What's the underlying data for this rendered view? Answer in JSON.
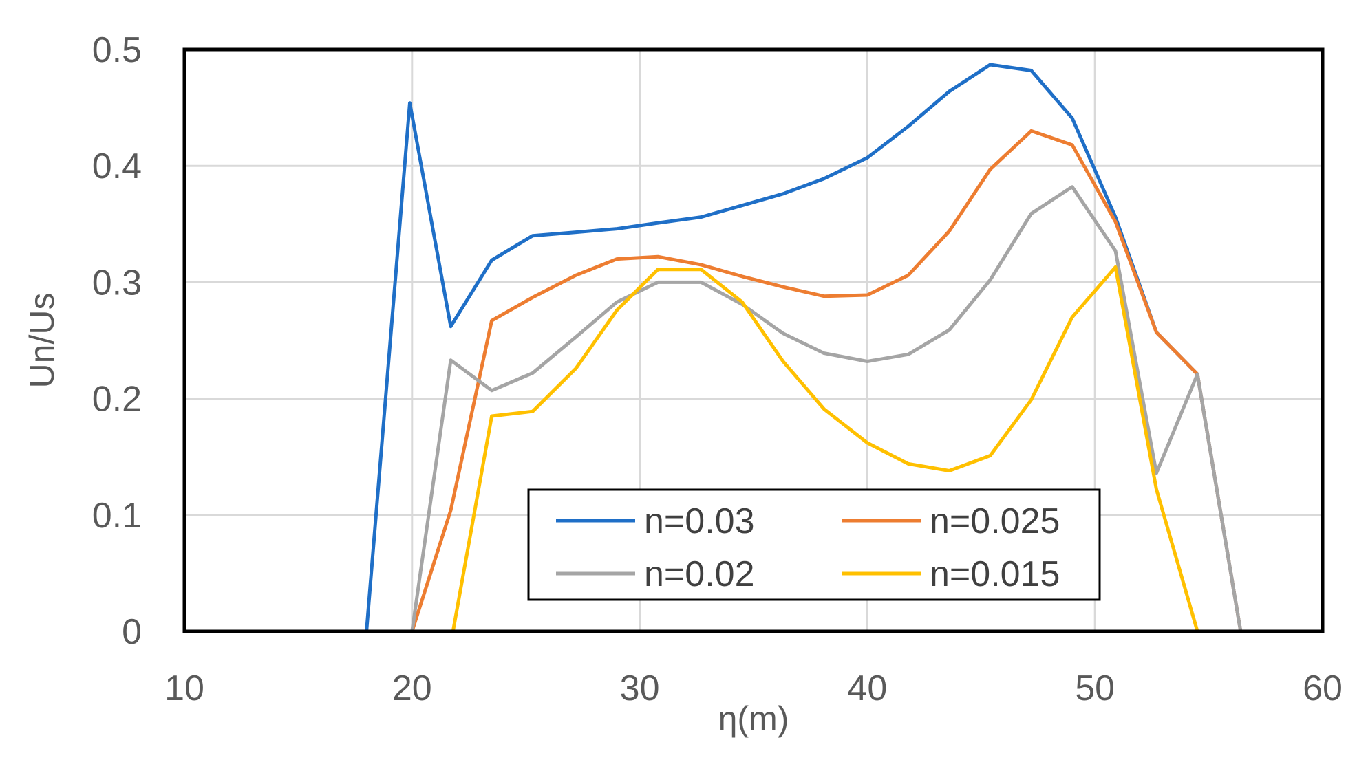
{
  "chart_data": {
    "type": "line",
    "title": "",
    "xlabel": "η(m)",
    "ylabel": "Un/Us",
    "xlim": [
      10,
      60
    ],
    "ylim": [
      0,
      0.5
    ],
    "x_ticks": [
      10,
      20,
      30,
      40,
      50,
      60
    ],
    "y_ticks": [
      0,
      0.1,
      0.2,
      0.3,
      0.4,
      0.5
    ],
    "x_tick_labels": [
      "10",
      "20",
      "30",
      "40",
      "50",
      "60"
    ],
    "y_tick_labels": [
      "0",
      "0.1",
      "0.2",
      "0.3",
      "0.4",
      "0.5"
    ],
    "grid": true,
    "legend_position": "bottom-center",
    "series": [
      {
        "name": "n=0.03",
        "color": "#1f6fc7",
        "points": [
          [
            10,
            0
          ],
          [
            18,
            0
          ],
          [
            19.9,
            0.454
          ],
          [
            21.7,
            0.262
          ],
          [
            23.5,
            0.319
          ],
          [
            25.3,
            0.34
          ],
          [
            27.2,
            0.343
          ],
          [
            29,
            0.346
          ],
          [
            30.8,
            0.351
          ],
          [
            32.7,
            0.356
          ],
          [
            34.5,
            0.366
          ],
          [
            36.3,
            0.376
          ],
          [
            38.1,
            0.389
          ],
          [
            40,
            0.407
          ],
          [
            41.8,
            0.434
          ],
          [
            43.6,
            0.464
          ],
          [
            45.4,
            0.487
          ],
          [
            47.2,
            0.482
          ],
          [
            49,
            0.441
          ],
          [
            50.9,
            0.356
          ],
          [
            52.7,
            0.257
          ],
          [
            54.5,
            0.221
          ],
          [
            56.4,
            0
          ],
          [
            60,
            0
          ]
        ]
      },
      {
        "name": "n=0.025",
        "color": "#ed7d31",
        "points": [
          [
            10,
            0
          ],
          [
            20,
            0
          ],
          [
            21.7,
            0.104
          ],
          [
            23.5,
            0.267
          ],
          [
            25.3,
            0.287
          ],
          [
            27.2,
            0.306
          ],
          [
            29,
            0.32
          ],
          [
            30.8,
            0.322
          ],
          [
            32.7,
            0.315
          ],
          [
            34.5,
            0.305
          ],
          [
            36.3,
            0.296
          ],
          [
            38.1,
            0.288
          ],
          [
            40,
            0.289
          ],
          [
            41.8,
            0.306
          ],
          [
            43.6,
            0.344
          ],
          [
            45.4,
            0.397
          ],
          [
            47.2,
            0.43
          ],
          [
            49,
            0.418
          ],
          [
            50.9,
            0.352
          ],
          [
            52.7,
            0.257
          ],
          [
            54.5,
            0.221
          ],
          [
            56.4,
            0
          ],
          [
            60,
            0
          ]
        ]
      },
      {
        "name": "n=0.02",
        "color": "#a5a5a5",
        "points": [
          [
            10,
            0
          ],
          [
            20,
            0
          ],
          [
            21.7,
            0.233
          ],
          [
            23.5,
            0.207
          ],
          [
            25.3,
            0.222
          ],
          [
            27.2,
            0.253
          ],
          [
            29,
            0.283
          ],
          [
            30.8,
            0.3
          ],
          [
            32.7,
            0.3
          ],
          [
            34.5,
            0.281
          ],
          [
            36.3,
            0.256
          ],
          [
            38.1,
            0.239
          ],
          [
            40,
            0.232
          ],
          [
            41.8,
            0.238
          ],
          [
            43.6,
            0.259
          ],
          [
            45.4,
            0.302
          ],
          [
            47.2,
            0.359
          ],
          [
            49,
            0.382
          ],
          [
            50.9,
            0.327
          ],
          [
            52.7,
            0.136
          ],
          [
            54.5,
            0.221
          ],
          [
            56.4,
            0
          ],
          [
            60,
            0
          ]
        ]
      },
      {
        "name": "n=0.015",
        "color": "#ffc000",
        "points": [
          [
            10,
            0
          ],
          [
            21.8,
            0
          ],
          [
            23.5,
            0.185
          ],
          [
            25.3,
            0.189
          ],
          [
            27.2,
            0.226
          ],
          [
            29,
            0.276
          ],
          [
            30.8,
            0.311
          ],
          [
            32.7,
            0.311
          ],
          [
            34.5,
            0.283
          ],
          [
            36.3,
            0.232
          ],
          [
            38.1,
            0.191
          ],
          [
            40,
            0.162
          ],
          [
            41.8,
            0.144
          ],
          [
            43.6,
            0.138
          ],
          [
            45.4,
            0.151
          ],
          [
            47.2,
            0.199
          ],
          [
            49,
            0.27
          ],
          [
            50.9,
            0.313
          ],
          [
            52.7,
            0.122
          ],
          [
            54.5,
            0
          ],
          [
            60,
            0
          ]
        ]
      }
    ]
  }
}
